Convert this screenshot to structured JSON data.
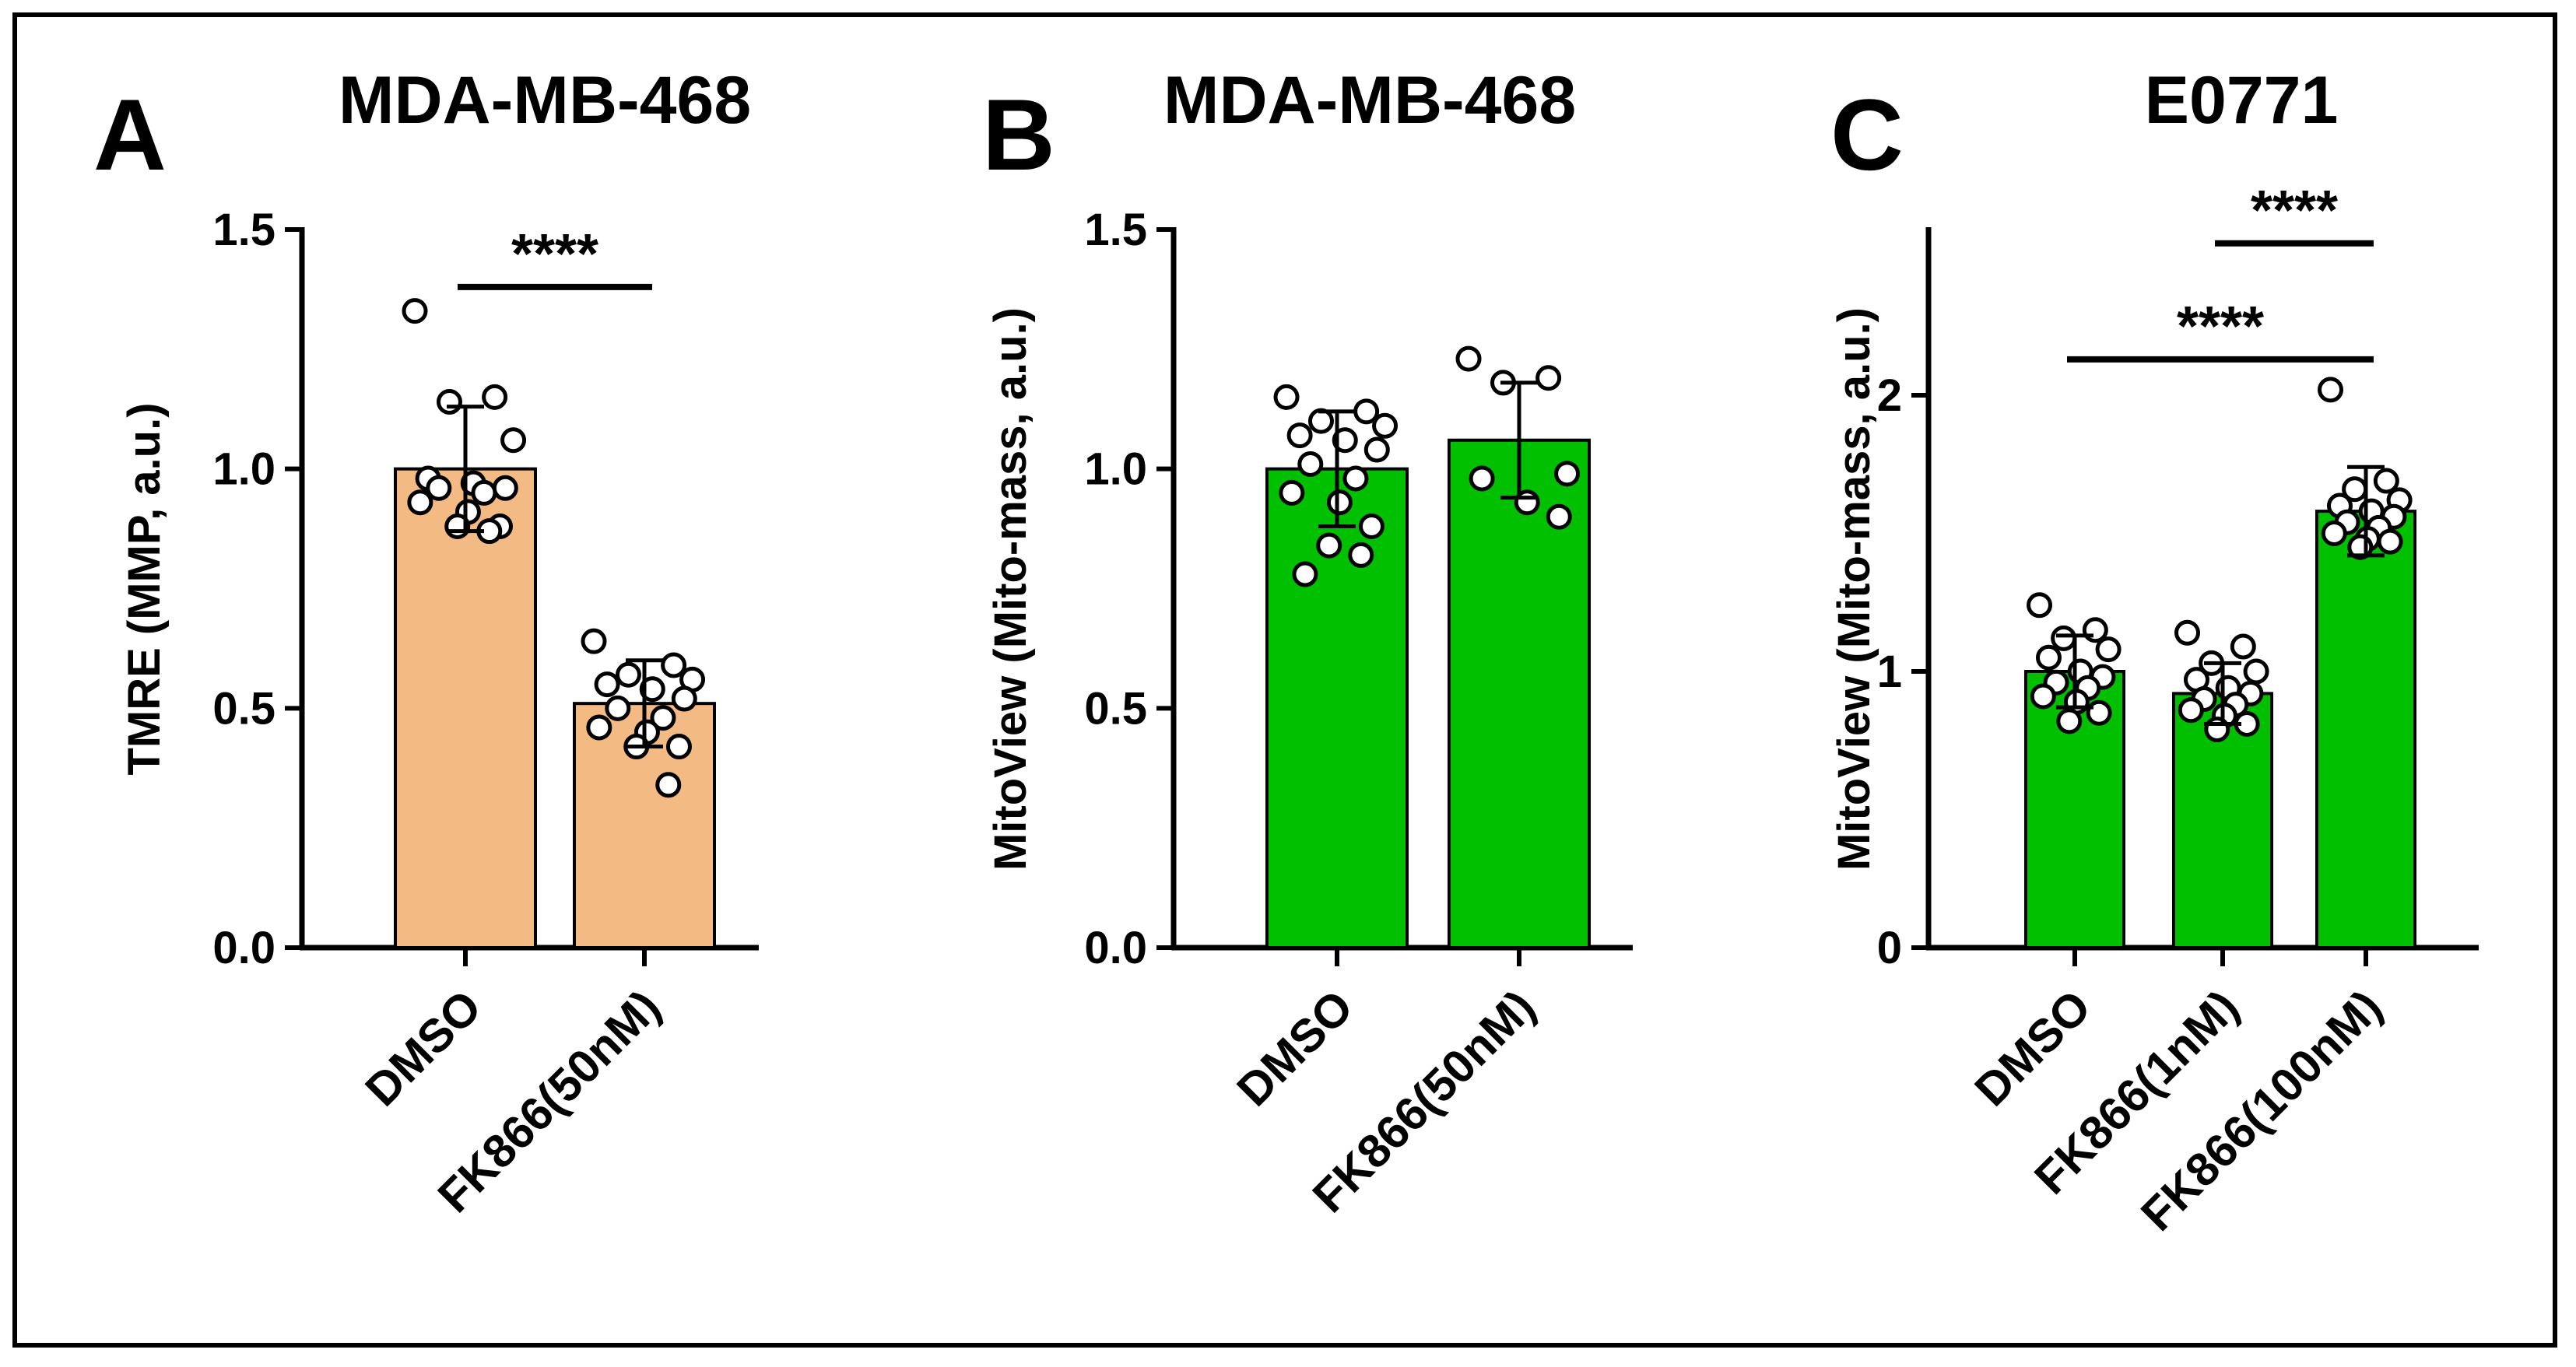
{
  "chart_data": [
    {
      "panel": "A",
      "type": "bar",
      "title": "MDA-MB-468",
      "ylabel": "TMRE (MMP, a.u.)",
      "ylim": [
        0,
        1.5
      ],
      "yticks": [
        "0.0",
        "0.5",
        "1.0",
        "1.5"
      ],
      "categories": [
        "DMSO",
        "FK866(50nM)"
      ],
      "values": [
        1.0,
        0.51
      ],
      "errors": [
        0.13,
        0.09
      ],
      "bar_color": "#f3bb83",
      "points": [
        [
          1.33,
          1.15,
          1.14,
          1.06,
          0.98,
          0.97,
          0.96,
          0.96,
          0.95,
          0.93,
          0.91,
          0.88,
          0.88,
          0.87
        ],
        [
          0.64,
          0.59,
          0.57,
          0.56,
          0.55,
          0.54,
          0.52,
          0.5,
          0.48,
          0.46,
          0.45,
          0.42,
          0.42,
          0.34
        ]
      ],
      "significance": [
        {
          "from": 0,
          "to": 1,
          "y": 1.38,
          "label": "****"
        }
      ]
    },
    {
      "panel": "B",
      "type": "bar",
      "title": "MDA-MB-468",
      "ylabel": "MitoView (Mito-mass, a.u.)",
      "ylim": [
        0,
        1.5
      ],
      "yticks": [
        "0.0",
        "0.5",
        "1.0",
        "1.5"
      ],
      "categories": [
        "DMSO",
        "FK866(50nM)"
      ],
      "values": [
        1.0,
        1.06
      ],
      "errors": [
        0.12,
        0.12
      ],
      "bar_color": "#00c000",
      "points": [
        [
          1.15,
          1.12,
          1.1,
          1.09,
          1.07,
          1.06,
          1.04,
          1.01,
          0.98,
          0.95,
          0.93,
          0.88,
          0.84,
          0.82,
          0.78
        ],
        [
          1.23,
          1.19,
          1.18,
          0.99,
          0.98,
          0.93,
          0.9
        ]
      ],
      "significance": []
    },
    {
      "panel": "C",
      "type": "bar",
      "title": "E0771",
      "ylabel": "MitoView (Mito-mass, a.u.)",
      "ylim": [
        0,
        2.6
      ],
      "yticks": [
        "0",
        "1",
        "2"
      ],
      "categories": [
        "DMSO",
        "FK866(1nM)",
        "FK866(100nM)"
      ],
      "values": [
        1.0,
        0.92,
        1.58
      ],
      "errors": [
        0.13,
        0.11,
        0.16
      ],
      "bar_color": "#00c000",
      "points": [
        [
          1.24,
          1.15,
          1.12,
          1.08,
          1.05,
          1.0,
          0.98,
          0.96,
          0.94,
          0.91,
          0.89,
          0.85,
          0.82
        ],
        [
          1.14,
          1.09,
          1.03,
          1.0,
          0.97,
          0.94,
          0.92,
          0.9,
          0.88,
          0.86,
          0.84,
          0.81,
          0.79
        ],
        [
          2.02,
          1.69,
          1.66,
          1.62,
          1.6,
          1.58,
          1.56,
          1.54,
          1.52,
          1.5,
          1.48,
          1.47,
          1.45
        ]
      ],
      "significance": [
        {
          "from": 1,
          "to": 2,
          "y": 2.55,
          "label": "****"
        },
        {
          "from": 0,
          "to": 2,
          "y": 2.13,
          "label": "****"
        }
      ]
    }
  ]
}
